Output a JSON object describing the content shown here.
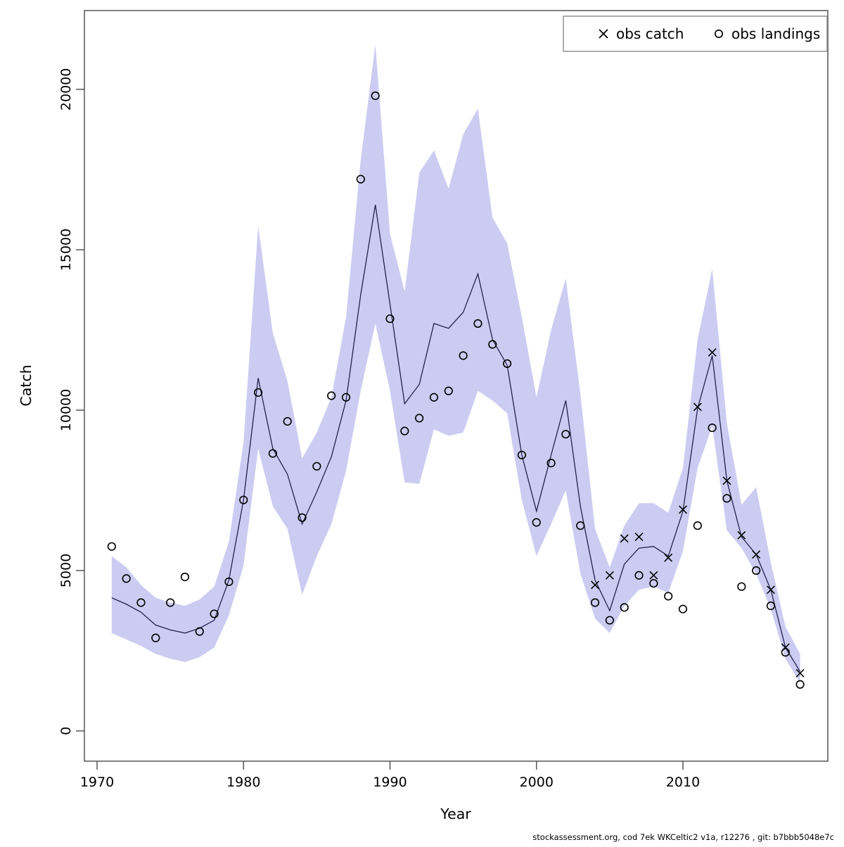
{
  "footer": {
    "text": "stockassessment.org, cod 7ek WKCeltic2 v1a, r12276 , git: b7bbb5048e7c"
  },
  "legend": {
    "items": [
      {
        "marker": "x",
        "label": "obs catch"
      },
      {
        "marker": "circle",
        "label": "obs landings"
      }
    ]
  },
  "chart_data": {
    "type": "line",
    "title": "",
    "xlabel": "Year",
    "ylabel": "Catch",
    "x_ticks": [
      1970,
      1980,
      1990,
      2000,
      2010
    ],
    "y_ticks": [
      0,
      5000,
      10000,
      15000,
      20000
    ],
    "xlim": [
      1969,
      2019.8
    ],
    "ylim": [
      -950,
      22200
    ],
    "grid": false,
    "legend_position": "top-right",
    "colors": {
      "band": "#ccccf2",
      "line": "#22224e",
      "marker": "#000000"
    },
    "years": [
      1971,
      1972,
      1973,
      1974,
      1975,
      1976,
      1977,
      1978,
      1979,
      1980,
      1981,
      1982,
      1983,
      1984,
      1985,
      1986,
      1987,
      1988,
      1989,
      1990,
      1991,
      1992,
      1993,
      1994,
      1995,
      1996,
      1997,
      1998,
      1999,
      2000,
      2001,
      2002,
      2003,
      2004,
      2005,
      2006,
      2007,
      2008,
      2009,
      2010,
      2011,
      2012,
      2013,
      2014,
      2015,
      2016,
      2017,
      2018
    ],
    "series": [
      {
        "name": "estimated catch",
        "type": "line",
        "values": [
          4150,
          3950,
          3700,
          3300,
          3150,
          3050,
          3200,
          3450,
          4700,
          7200,
          11000,
          8800,
          8000,
          6450,
          7450,
          8550,
          10300,
          13600,
          16400,
          13300,
          10200,
          10800,
          12700,
          12550,
          13050,
          14250,
          12200,
          11400,
          8600,
          6850,
          8600,
          10300,
          7000,
          4700,
          3750,
          5200,
          5700,
          5750,
          5450,
          6850,
          10050,
          11700,
          7800,
          6050,
          5500,
          4400,
          2600,
          1850
        ]
      },
      {
        "name": "confidence band upper",
        "type": "band-upper",
        "values": [
          5450,
          5100,
          4550,
          4150,
          4000,
          3900,
          4100,
          4500,
          5900,
          9000,
          15750,
          12400,
          10900,
          8500,
          9300,
          10400,
          12900,
          17800,
          21400,
          15500,
          13700,
          17400,
          18100,
          16900,
          18600,
          19400,
          16000,
          15200,
          12900,
          10400,
          12500,
          14100,
          10500,
          6300,
          5100,
          6400,
          7100,
          7100,
          6800,
          8200,
          12200,
          14400,
          9600,
          7050,
          7600,
          5250,
          3250,
          2400
        ]
      },
      {
        "name": "confidence band lower",
        "type": "band-lower",
        "values": [
          3050,
          2850,
          2650,
          2400,
          2250,
          2150,
          2300,
          2600,
          3600,
          5150,
          8800,
          7000,
          6300,
          4250,
          5450,
          6450,
          8100,
          10600,
          12700,
          10600,
          7750,
          7700,
          9400,
          9200,
          9300,
          10600,
          10300,
          9900,
          7200,
          5450,
          6450,
          7500,
          4900,
          3500,
          3050,
          3900,
          4400,
          4500,
          4300,
          5600,
          8200,
          9500,
          6250,
          5700,
          4900,
          3800,
          2250,
          1500
        ]
      },
      {
        "name": "obs landings",
        "type": "scatter-circle",
        "values": [
          5750,
          4750,
          4000,
          2900,
          4000,
          4800,
          3100,
          3650,
          4650,
          7200,
          10550,
          8650,
          9650,
          6650,
          8250,
          10450,
          10400,
          17200,
          19800,
          12850,
          9350,
          9750,
          10400,
          10600,
          11700,
          12700,
          12050,
          11450,
          8600,
          6500,
          8350,
          9250,
          6400,
          4000,
          3450,
          3850,
          4850,
          4600,
          4200,
          3800,
          6400,
          9450,
          7250,
          4500,
          5000,
          3900,
          2450,
          1450
        ]
      },
      {
        "name": "obs catch",
        "type": "scatter-x",
        "points": [
          [
            2004,
            4550
          ],
          [
            2005,
            4850
          ],
          [
            2006,
            6000
          ],
          [
            2007,
            6050
          ],
          [
            2008,
            4850
          ],
          [
            2009,
            5400
          ],
          [
            2010,
            6900
          ],
          [
            2011,
            10100
          ],
          [
            2012,
            11800
          ],
          [
            2013,
            7800
          ],
          [
            2014,
            6100
          ],
          [
            2015,
            5500
          ],
          [
            2016,
            4400
          ],
          [
            2017,
            2600
          ],
          [
            2018,
            1800
          ]
        ]
      }
    ]
  }
}
